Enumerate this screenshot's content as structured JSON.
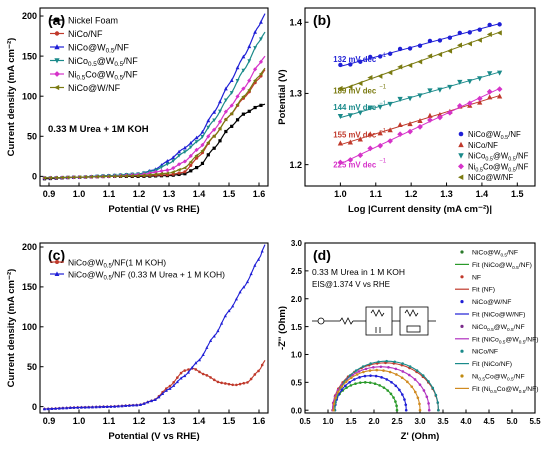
{
  "chart_data": [
    {
      "panel": "(a)",
      "type": "line",
      "xlabel": "Potential (V vs RHE)",
      "ylabel": "Current density (mA cm⁻²)",
      "xlim": [
        0.87,
        1.63
      ],
      "ylim": [
        -12,
        210
      ],
      "xticks": [
        0.9,
        1.0,
        1.1,
        1.2,
        1.3,
        1.4,
        1.5,
        1.6
      ],
      "xtick_labels": [
        "0.9",
        "1.0",
        "1.1",
        "1.2",
        "1.3",
        "1.4",
        "1.5",
        "1.6"
      ],
      "yticks": [
        0,
        50,
        100,
        150,
        200
      ],
      "ytick_labels": [
        "0",
        "50",
        "100",
        "150",
        "200"
      ],
      "annotation": "0.33 M Urea + 1M KOH",
      "legend_position": "top-left",
      "series": [
        {
          "name": "Nickel Foam",
          "color": "#000000",
          "marker": "square",
          "points": [
            [
              0.88,
              -3
            ],
            [
              1.0,
              -1
            ],
            [
              1.1,
              0
            ],
            [
              1.2,
              0
            ],
            [
              1.3,
              1
            ],
            [
              1.35,
              3
            ],
            [
              1.4,
              12
            ],
            [
              1.45,
              35
            ],
            [
              1.5,
              60
            ],
            [
              1.55,
              78
            ],
            [
              1.6,
              88
            ],
            [
              1.62,
              90
            ]
          ]
        },
        {
          "name": "NiCo/NF",
          "color": "#c0392b",
          "marker": "circle",
          "points": [
            [
              0.88,
              -2
            ],
            [
              1.0,
              -1
            ],
            [
              1.1,
              0
            ],
            [
              1.2,
              1
            ],
            [
              1.3,
              2
            ],
            [
              1.35,
              5
            ],
            [
              1.4,
              25
            ],
            [
              1.45,
              50
            ],
            [
              1.5,
              75
            ],
            [
              1.55,
              98
            ],
            [
              1.6,
              122
            ],
            [
              1.62,
              133
            ]
          ]
        },
        {
          "name": "NiCo@W0.5/NF",
          "color": "#1f1fd6",
          "marker": "triangle-up",
          "points": [
            [
              0.88,
              -2
            ],
            [
              1.0,
              -1
            ],
            [
              1.1,
              1
            ],
            [
              1.2,
              3
            ],
            [
              1.25,
              8
            ],
            [
              1.3,
              20
            ],
            [
              1.35,
              35
            ],
            [
              1.4,
              50
            ],
            [
              1.45,
              80
            ],
            [
              1.5,
              115
            ],
            [
              1.55,
              150
            ],
            [
              1.6,
              188
            ],
            [
              1.62,
              203
            ]
          ]
        },
        {
          "name": "NiCo0.5@W0.5/NF",
          "color": "#1a8a8a",
          "marker": "triangle-down",
          "points": [
            [
              0.88,
              -2
            ],
            [
              1.0,
              -1
            ],
            [
              1.1,
              1
            ],
            [
              1.2,
              3
            ],
            [
              1.25,
              7
            ],
            [
              1.3,
              16
            ],
            [
              1.35,
              30
            ],
            [
              1.4,
              45
            ],
            [
              1.45,
              70
            ],
            [
              1.5,
              100
            ],
            [
              1.55,
              133
            ],
            [
              1.6,
              168
            ],
            [
              1.62,
              180
            ]
          ]
        },
        {
          "name": "Ni0.5Co@W0.5/NF",
          "color": "#d633c9",
          "marker": "diamond",
          "points": [
            [
              0.88,
              -2
            ],
            [
              1.0,
              -1
            ],
            [
              1.1,
              0
            ],
            [
              1.2,
              2
            ],
            [
              1.3,
              8
            ],
            [
              1.35,
              18
            ],
            [
              1.4,
              35
            ],
            [
              1.45,
              58
            ],
            [
              1.5,
              85
            ],
            [
              1.55,
              110
            ],
            [
              1.6,
              140
            ],
            [
              1.62,
              150
            ]
          ]
        },
        {
          "name": "NiCo@W/NF",
          "color": "#7a7a10",
          "marker": "triangle-left",
          "points": [
            [
              0.88,
              -2
            ],
            [
              1.0,
              -1
            ],
            [
              1.1,
              0
            ],
            [
              1.2,
              1
            ],
            [
              1.3,
              4
            ],
            [
              1.35,
              10
            ],
            [
              1.4,
              28
            ],
            [
              1.45,
              50
            ],
            [
              1.5,
              75
            ],
            [
              1.55,
              100
            ],
            [
              1.6,
              125
            ],
            [
              1.62,
              135
            ]
          ]
        }
      ]
    },
    {
      "panel": "(b)",
      "type": "scatter",
      "xlabel": "Log |Current density (mA cm⁻²)|",
      "ylabel": "Potential (V)",
      "xlim": [
        0.9,
        1.55
      ],
      "ylim": [
        1.17,
        1.42
      ],
      "xticks": [
        1.0,
        1.1,
        1.2,
        1.3,
        1.4,
        1.5
      ],
      "xtick_labels": [
        "1.0",
        "1.1",
        "1.2",
        "1.3",
        "1.4",
        "1.5"
      ],
      "yticks": [
        1.2,
        1.3,
        1.4
      ],
      "ytick_labels": [
        "1.2",
        "1.3",
        "1.4"
      ],
      "legend_position": "bottom-right",
      "tafel_labels": [
        {
          "text": "132 mV dec",
          "sup": "−1",
          "color": "#1f1fd6",
          "x": 0.98,
          "y": 1.344
        },
        {
          "text": "189 mV dec",
          "sup": "−1",
          "color": "#7a7a10",
          "x": 0.98,
          "y": 1.3
        },
        {
          "text": "144 mV dec",
          "sup": "−1",
          "color": "#1a8a8a",
          "x": 0.98,
          "y": 1.277
        },
        {
          "text": "155 mV dec",
          "sup": "−1",
          "color": "#c0392b",
          "x": 0.98,
          "y": 1.238
        },
        {
          "text": "225 mV dec",
          "sup": "−1",
          "color": "#d633c9",
          "x": 0.98,
          "y": 1.196
        }
      ],
      "series": [
        {
          "name": "NiCo@W0.5/NF",
          "color": "#1f1fd6",
          "marker": "circle",
          "line": [
            [
              1.0,
              1.338
            ],
            [
              1.45,
              1.398
            ]
          ]
        },
        {
          "name": "NiCo/NF",
          "color": "#c0392b",
          "marker": "triangle-up",
          "line": [
            [
              1.0,
              1.228
            ],
            [
              1.45,
              1.297
            ]
          ]
        },
        {
          "name": "NiCo0.5@W0.5/NF",
          "color": "#1a8a8a",
          "marker": "triangle-down",
          "line": [
            [
              1.0,
              1.266
            ],
            [
              1.45,
              1.33
            ]
          ]
        },
        {
          "name": "Ni0.5Co@W0.5/NF",
          "color": "#d633c9",
          "marker": "diamond",
          "line": [
            [
              1.0,
              1.201
            ],
            [
              1.45,
              1.307
            ]
          ]
        },
        {
          "name": "NiCo@W/NF",
          "color": "#7a7a10",
          "marker": "triangle-left",
          "line": [
            [
              1.0,
              1.305
            ],
            [
              1.45,
              1.386
            ]
          ]
        }
      ]
    },
    {
      "panel": "(c)",
      "type": "line",
      "xlabel": "Potential (V vs RHE)",
      "ylabel": "Current density (mA cm⁻²)",
      "xlim": [
        0.87,
        1.63
      ],
      "ylim": [
        -8,
        205
      ],
      "xticks": [
        0.9,
        1.0,
        1.1,
        1.2,
        1.3,
        1.4,
        1.5,
        1.6
      ],
      "xtick_labels": [
        "0.9",
        "1.0",
        "1.1",
        "1.2",
        "1.3",
        "1.4",
        "1.5",
        "1.6"
      ],
      "yticks": [
        0,
        50,
        100,
        150,
        200
      ],
      "ytick_labels": [
        "0",
        "50",
        "100",
        "150",
        "200"
      ],
      "legend_position": "top-left",
      "series": [
        {
          "name": "NiCo@W0.5/NF(1 M KOH)",
          "color": "#c0392b",
          "marker": "circle",
          "points": [
            [
              0.88,
              -3
            ],
            [
              1.0,
              -1
            ],
            [
              1.1,
              0
            ],
            [
              1.2,
              2
            ],
            [
              1.25,
              8
            ],
            [
              1.3,
              25
            ],
            [
              1.35,
              45
            ],
            [
              1.38,
              48
            ],
            [
              1.42,
              40
            ],
            [
              1.47,
              30
            ],
            [
              1.52,
              27
            ],
            [
              1.56,
              30
            ],
            [
              1.6,
              45
            ],
            [
              1.62,
              58
            ]
          ]
        },
        {
          "name": "NiCo@W0.5/NF (0.33 M Urea + 1 M KOH)",
          "color": "#1f1fd6",
          "marker": "triangle-up",
          "points": [
            [
              0.88,
              -3
            ],
            [
              1.0,
              -1
            ],
            [
              1.1,
              0
            ],
            [
              1.2,
              2
            ],
            [
              1.25,
              8
            ],
            [
              1.3,
              22
            ],
            [
              1.35,
              38
            ],
            [
              1.4,
              58
            ],
            [
              1.45,
              88
            ],
            [
              1.5,
              120
            ],
            [
              1.55,
              150
            ],
            [
              1.6,
              185
            ],
            [
              1.62,
              203
            ]
          ]
        }
      ]
    },
    {
      "panel": "(d)",
      "type": "scatter",
      "xlabel": "Z' (Ohm)",
      "ylabel": "-Z'' (Ohm)",
      "xlim": [
        0.5,
        5.5
      ],
      "ylim": [
        -0.05,
        3.0
      ],
      "xticks": [
        0.5,
        1.0,
        1.5,
        2.0,
        2.5,
        3.0,
        3.5,
        4.0,
        4.5,
        5.0,
        5.5
      ],
      "xtick_labels": [
        "0.5",
        "1.0",
        "1.5",
        "2.0",
        "2.5",
        "3.0",
        "3.5",
        "4.0",
        "4.5",
        "5.0",
        "5.5"
      ],
      "yticks": [
        0.0,
        0.5,
        1.0,
        1.5,
        2.0,
        2.5,
        3.0
      ],
      "ytick_labels": [
        "0.0",
        "0.5",
        "1.0",
        "1.5",
        "2.0",
        "2.5",
        "3.0"
      ],
      "annotation_1": "0.33 M Urea in 1 M KOH",
      "annotation_2": "EIS@1.374 V vs RHE",
      "legend_position": "right",
      "legend": [
        {
          "label": "NiCo@W0.5/NF",
          "kind": "marker",
          "color": "#2a7a2a"
        },
        {
          "label": "Fit (NiCo@W0.5/NF)",
          "kind": "line",
          "color": "#2a9a2a"
        },
        {
          "label": "NF",
          "kind": "marker",
          "color": "#c0392b"
        },
        {
          "label": "Fit (NF)",
          "kind": "line",
          "color": "#c0392b"
        },
        {
          "label": "NiCo@W/NF",
          "kind": "marker",
          "color": "#1f1fd6"
        },
        {
          "label": "Fit (NiCo@W/NF)",
          "kind": "line",
          "color": "#1f1fd6"
        },
        {
          "label": "NiCo0.5@W0.5/NF",
          "kind": "marker",
          "color": "#7a2a8a"
        },
        {
          "label": "Fit (NiCo0.5@W0.5/NF)",
          "kind": "line",
          "color": "#b030c0"
        },
        {
          "label": "NiCo/NF",
          "kind": "marker",
          "color": "#1a8a8a"
        },
        {
          "label": "Fit (NiCo/NF)",
          "kind": "line",
          "color": "#1a8a8a"
        },
        {
          "label": "Ni0.5Co@W0.5/NF",
          "kind": "marker",
          "color": "#c08a10"
        },
        {
          "label": "Fit (Ni0.5Co@W0.5/NF)",
          "kind": "line",
          "color": "#d08a20"
        }
      ],
      "series": [
        {
          "name": "NiCo@W0.5/NF",
          "color": "#2a9a2a",
          "start": 1.12,
          "end": 2.5,
          "height": 0.5
        },
        {
          "name": "NF",
          "color": "#c0392b",
          "start": 1.1,
          "end": 3.4,
          "height": 0.85
        },
        {
          "name": "NiCo@W/NF",
          "color": "#1f1fd6",
          "start": 1.15,
          "end": 2.7,
          "height": 0.62
        },
        {
          "name": "NiCo0.5@W0.5/NF",
          "color": "#b030c0",
          "start": 1.1,
          "end": 3.2,
          "height": 0.78
        },
        {
          "name": "NiCo/NF",
          "color": "#1a8a8a",
          "start": 1.15,
          "end": 3.4,
          "height": 0.88
        },
        {
          "name": "Ni0.5Co@W0.5/NF",
          "color": "#d08a20",
          "start": 1.12,
          "end": 3.0,
          "height": 0.72
        }
      ]
    }
  ]
}
